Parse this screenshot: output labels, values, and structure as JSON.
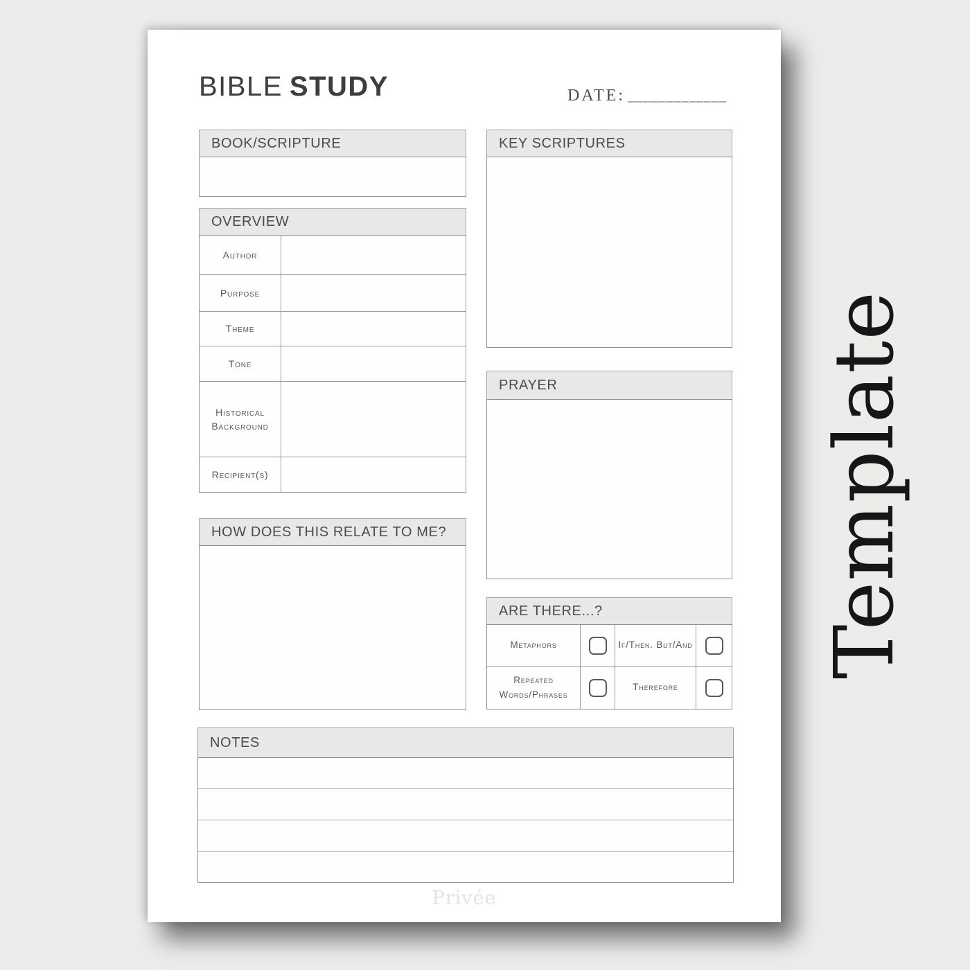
{
  "header": {
    "title_primary": "BIBLE",
    "title_secondary": "STUDY",
    "date_label": "DATE:",
    "date_line": "_____________"
  },
  "sections": {
    "book_scripture": {
      "title": "BOOK/SCRIPTURE",
      "value": ""
    },
    "overview": {
      "title": "OVERVIEW",
      "rows": [
        {
          "label": "Author",
          "value": ""
        },
        {
          "label": "Purpose",
          "value": ""
        },
        {
          "label": "Theme",
          "value": ""
        },
        {
          "label": "Tone",
          "value": ""
        },
        {
          "label": "Historical Background",
          "value": ""
        },
        {
          "label": "Recipient(s)",
          "value": ""
        }
      ]
    },
    "relate": {
      "title": "HOW DOES THIS RELATE TO ME?",
      "value": ""
    },
    "key_scriptures": {
      "title": "KEY SCRIPTURES",
      "value": ""
    },
    "prayer": {
      "title": "PRAYER",
      "value": ""
    },
    "are_there": {
      "title": "ARE THERE...?",
      "items": [
        {
          "label": "Metaphors",
          "checked": false
        },
        {
          "label": "If/Then. But/And",
          "checked": false
        },
        {
          "label": "Repeated Words/Phrases",
          "checked": false
        },
        {
          "label": "Therefore",
          "checked": false
        }
      ]
    },
    "notes": {
      "title": "NOTES",
      "lines": [
        "",
        "",
        "",
        ""
      ]
    }
  },
  "footer": {
    "brand": "Privée"
  },
  "overlay": {
    "label": "Template"
  },
  "colors": {
    "background": "#ececeb",
    "page": "#ffffff",
    "header_band": "#e9e8e8",
    "border": "#918d8d",
    "text": "#4a4a4e",
    "checkbox_border": "#5e5954",
    "watermark": "#e4e2e2",
    "overlay_text": "#161616"
  }
}
